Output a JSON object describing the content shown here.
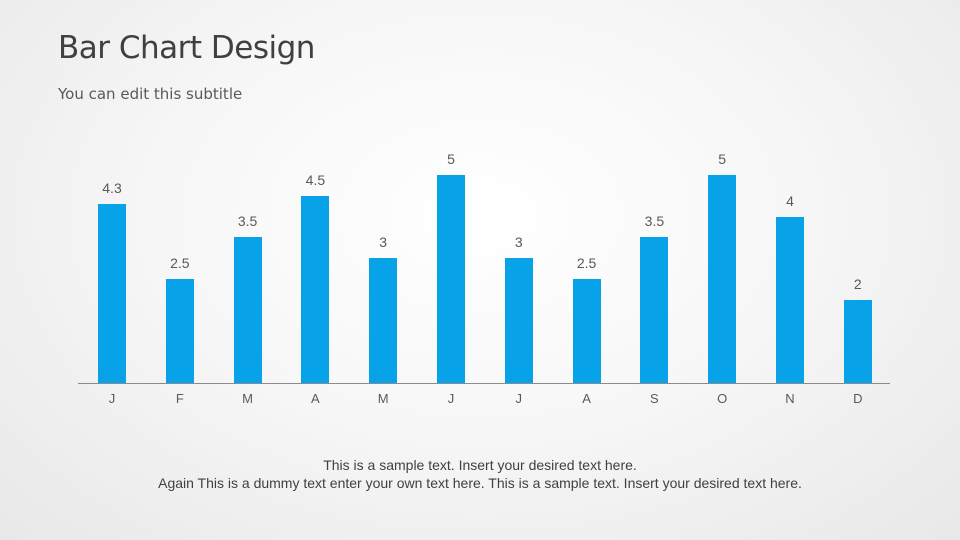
{
  "slide": {
    "title": "Bar Chart Design",
    "subtitle": "You can edit this subtitle",
    "footer": {
      "line1": "This is a sample text. Insert your desired text here.",
      "line2": "Again This is a dummy text enter your own text here. This is a sample text. Insert your desired text here."
    }
  },
  "colors": {
    "bar": "#08A2E8",
    "axis": "#8C8C8C",
    "label": "#595959"
  },
  "chart_data": {
    "type": "bar",
    "title": "",
    "xlabel": "",
    "ylabel": "",
    "categories": [
      "J",
      "F",
      "M",
      "A",
      "M",
      "J",
      "J",
      "A",
      "S",
      "O",
      "N",
      "D"
    ],
    "values": [
      4.3,
      2.5,
      3.5,
      4.5,
      3,
      5,
      3,
      2.5,
      3.5,
      5,
      4,
      2
    ],
    "value_labels": [
      "4.3",
      "2.5",
      "3.5",
      "4.5",
      "3",
      "5",
      "3",
      "2.5",
      "3.5",
      "5",
      "4",
      "2"
    ],
    "ylim": [
      0,
      5
    ],
    "grid": false,
    "legend": "none",
    "data_labels": true
  }
}
